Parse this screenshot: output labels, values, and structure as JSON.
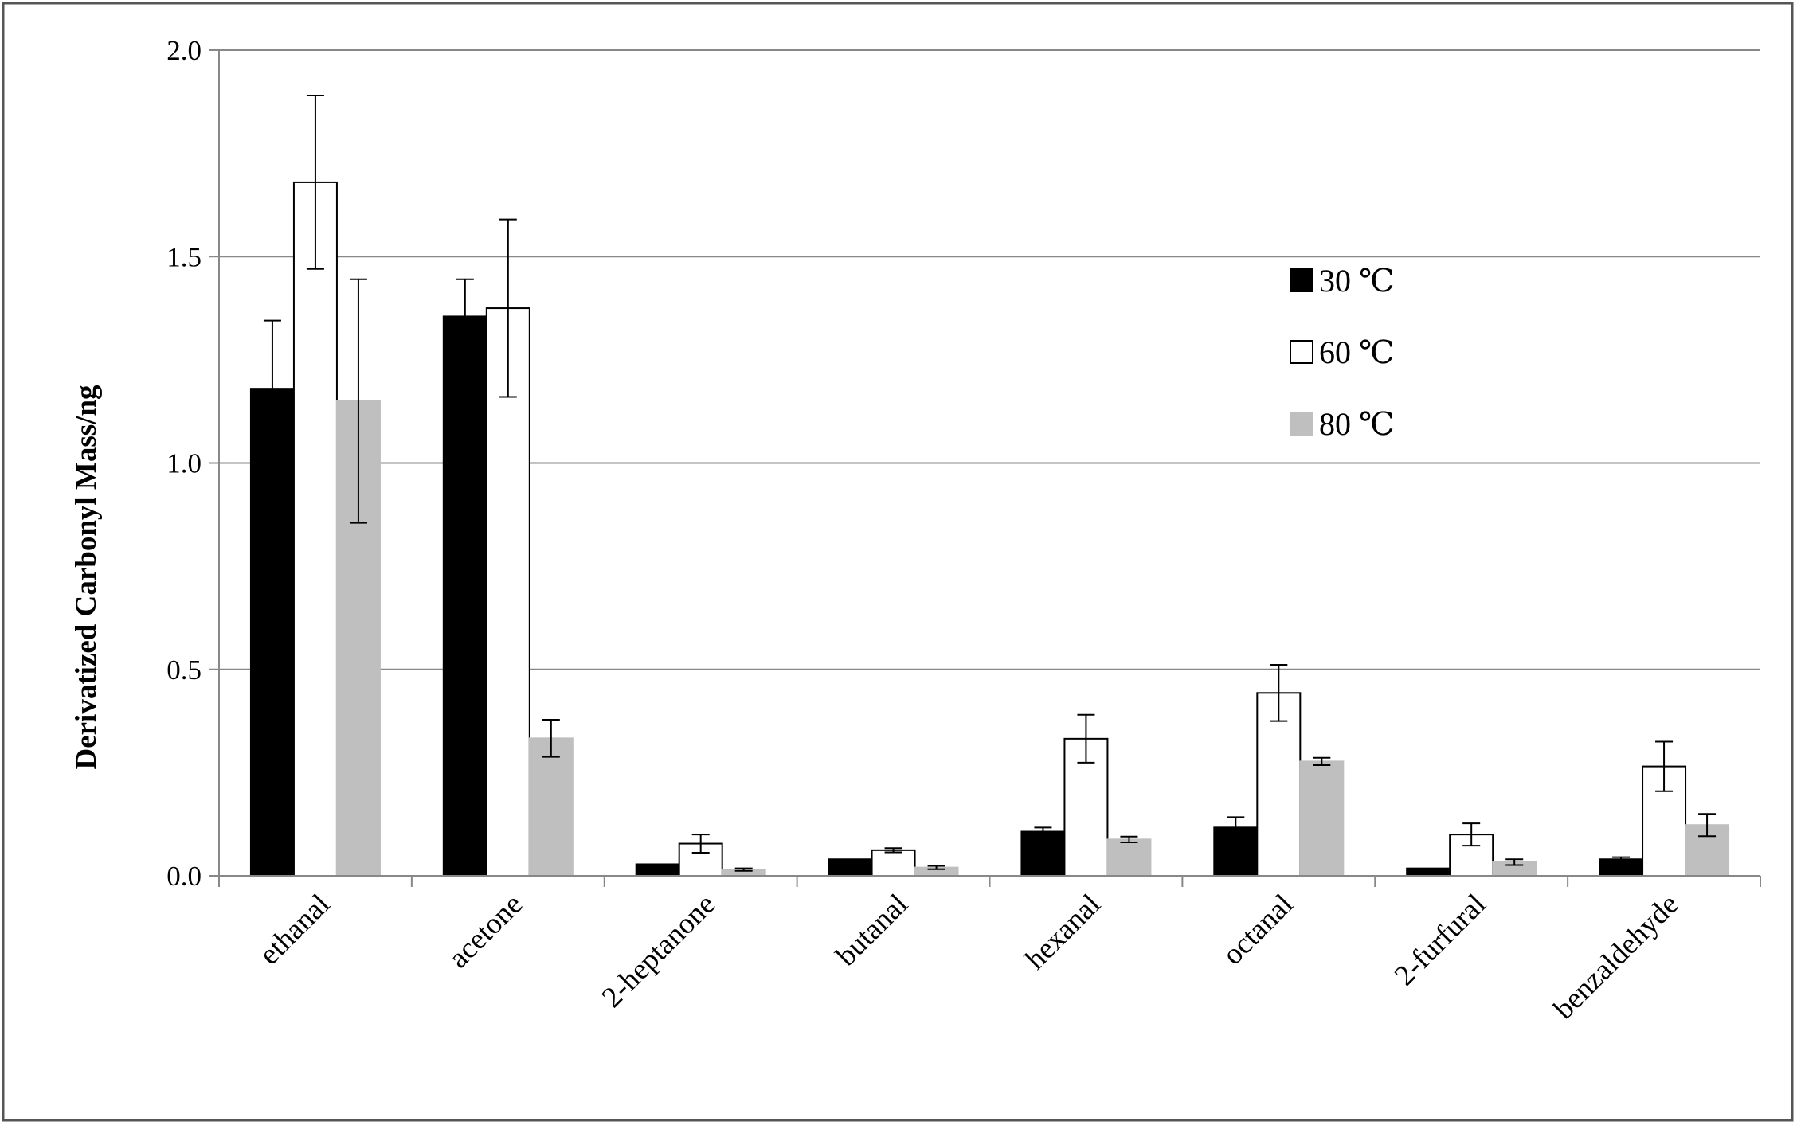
{
  "chart_data": {
    "type": "bar",
    "title": "",
    "xlabel": "",
    "ylabel": "Derivatized  Carbonyl Mass/ng",
    "ylim": [
      0,
      2.0
    ],
    "yticks": [
      "0.0",
      "0.5",
      "1.0",
      "1.5",
      "2.0"
    ],
    "ytick_values": [
      0,
      0.5,
      1.0,
      1.5,
      2.0
    ],
    "grid": true,
    "legend_placement": "upper-right",
    "categories": [
      "ethanal",
      "acetone",
      "2-heptanone",
      "butanal",
      "hexanal",
      "octanal",
      "2-furfural",
      "benzaldehyde"
    ],
    "series": [
      {
        "name": "30 ℃",
        "fill": "#000000",
        "stroke": "#000000",
        "values": [
          1.18,
          1.355,
          0.028,
          0.04,
          0.107,
          0.117,
          0.018,
          0.04
        ],
        "errors": [
          0.165,
          0.09,
          0.0,
          0.0,
          0.01,
          0.025,
          0.0,
          0.005
        ]
      },
      {
        "name": "60 ℃",
        "fill": "#ffffff",
        "stroke": "#000000",
        "values": [
          1.68,
          1.375,
          0.078,
          0.062,
          0.332,
          0.443,
          0.1,
          0.265
        ],
        "errors": [
          0.21,
          0.215,
          0.022,
          0.005,
          0.058,
          0.068,
          0.027,
          0.06
        ]
      },
      {
        "name": "80 ℃",
        "fill": "#bfbfbf",
        "stroke": "#bfbfbf",
        "values": [
          1.15,
          0.333,
          0.015,
          0.02,
          0.088,
          0.277,
          0.033,
          0.123
        ],
        "errors": [
          0.295,
          0.045,
          0.003,
          0.004,
          0.007,
          0.009,
          0.007,
          0.027
        ]
      }
    ]
  }
}
